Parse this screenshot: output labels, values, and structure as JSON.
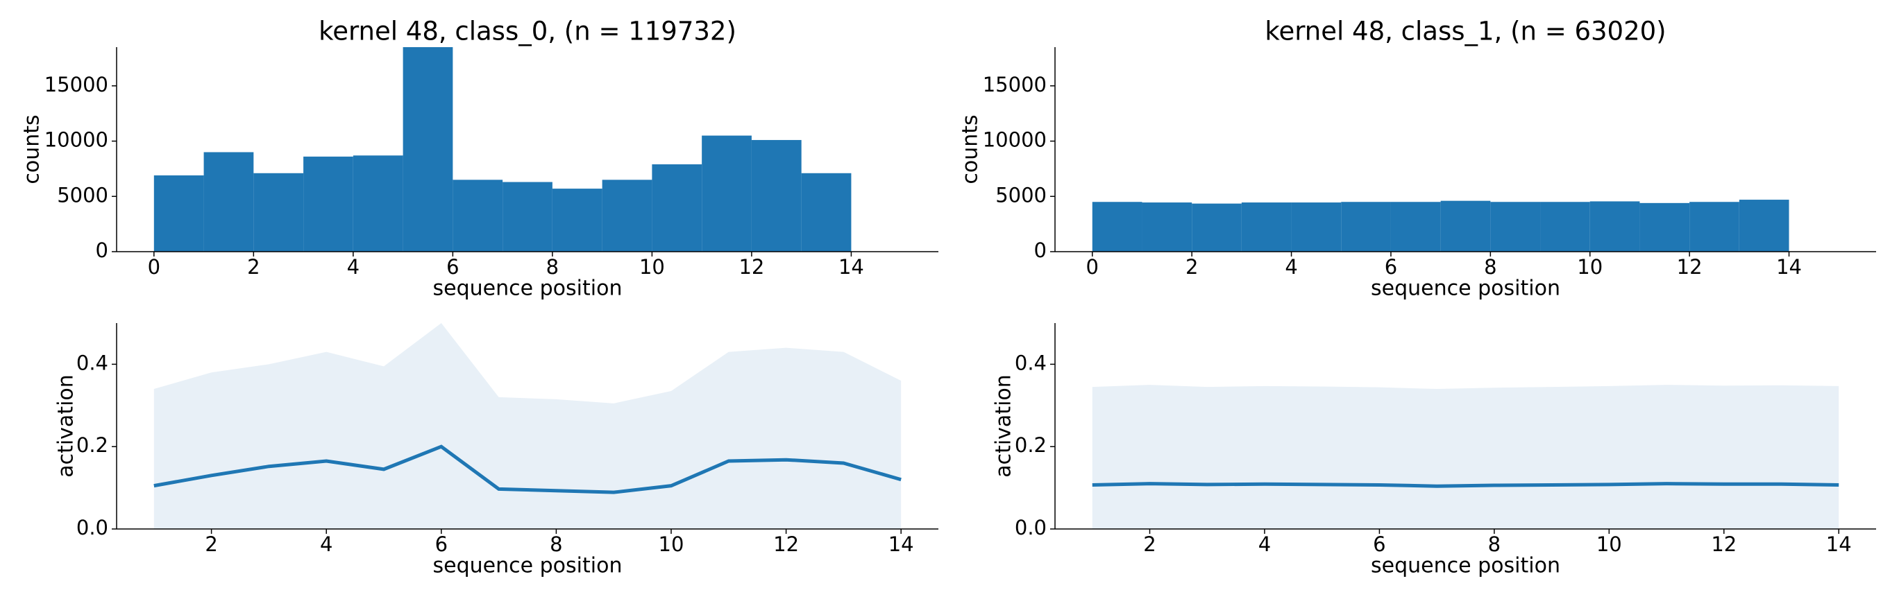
{
  "chart_data": [
    {
      "type": "histogram",
      "title": "kernel 48, class_0, (n = 119732)",
      "xlabel": "sequence position",
      "ylabel": "counts",
      "bins": [
        0,
        1,
        2,
        3,
        4,
        5,
        6,
        7,
        8,
        9,
        10,
        11,
        12,
        13,
        14
      ],
      "counts": [
        6900,
        9000,
        7100,
        8600,
        8700,
        18500,
        6500,
        6300,
        5700,
        6500,
        7900,
        10500,
        10100,
        7100
      ],
      "color": "#1f77b4",
      "xlim": [
        -0.75,
        15.75
      ],
      "ylim": [
        0,
        18500
      ],
      "xticks": [
        0,
        2,
        4,
        6,
        8,
        10,
        12,
        14
      ],
      "yticks": [
        0,
        5000,
        10000,
        15000
      ]
    },
    {
      "type": "histogram",
      "title": "kernel 48, class_1, (n = 63020)",
      "xlabel": "sequence position",
      "ylabel": "counts",
      "bins": [
        0,
        1,
        2,
        3,
        4,
        5,
        6,
        7,
        8,
        9,
        10,
        11,
        12,
        13,
        14
      ],
      "counts": [
        4500,
        4450,
        4350,
        4450,
        4450,
        4500,
        4500,
        4600,
        4500,
        4500,
        4550,
        4400,
        4500,
        4700
      ],
      "color": "#1f77b4",
      "xlim": [
        -0.75,
        15.75
      ],
      "ylim": [
        0,
        18500
      ],
      "xticks": [
        0,
        2,
        4,
        6,
        8,
        10,
        12,
        14
      ],
      "yticks": [
        0,
        5000,
        10000,
        15000
      ]
    },
    {
      "type": "line",
      "xlabel": "sequence position",
      "ylabel": "activation",
      "x": [
        1,
        2,
        3,
        4,
        5,
        6,
        7,
        8,
        9,
        10,
        11,
        12,
        13,
        14
      ],
      "series": [
        {
          "kind": "area",
          "color": "#e8f0f7",
          "values": [
            0.34,
            0.38,
            0.4,
            0.43,
            0.395,
            0.5,
            0.32,
            0.315,
            0.305,
            0.335,
            0.43,
            0.44,
            0.43,
            0.36
          ]
        },
        {
          "kind": "line",
          "color": "#1f77b4",
          "values": [
            0.105,
            0.13,
            0.152,
            0.165,
            0.145,
            0.2,
            0.097,
            0.093,
            0.089,
            0.105,
            0.165,
            0.168,
            0.16,
            0.12
          ]
        }
      ],
      "xlim": [
        0.35,
        14.65
      ],
      "ylim": [
        0,
        0.5
      ],
      "xticks": [
        2,
        4,
        6,
        8,
        10,
        12,
        14
      ],
      "yticks": [
        {
          "value": 0,
          "label": "0.0"
        },
        0.2,
        0.4
      ]
    },
    {
      "type": "line",
      "xlabel": "sequence position",
      "ylabel": "activation",
      "x": [
        1,
        2,
        3,
        4,
        5,
        6,
        7,
        8,
        9,
        10,
        11,
        12,
        13,
        14
      ],
      "series": [
        {
          "kind": "area",
          "color": "#e8f0f7",
          "values": [
            0.345,
            0.35,
            0.345,
            0.347,
            0.346,
            0.344,
            0.34,
            0.343,
            0.345,
            0.347,
            0.35,
            0.348,
            0.349,
            0.347
          ]
        },
        {
          "kind": "line",
          "color": "#1f77b4",
          "values": [
            0.107,
            0.11,
            0.108,
            0.109,
            0.108,
            0.107,
            0.104,
            0.106,
            0.107,
            0.108,
            0.11,
            0.109,
            0.109,
            0.107
          ]
        }
      ],
      "xlim": [
        0.35,
        14.65
      ],
      "ylim": [
        0,
        0.5
      ],
      "xticks": [
        2,
        4,
        6,
        8,
        10,
        12,
        14
      ],
      "yticks": [
        {
          "value": 0,
          "label": "0.0"
        },
        0.2,
        0.4
      ]
    }
  ]
}
